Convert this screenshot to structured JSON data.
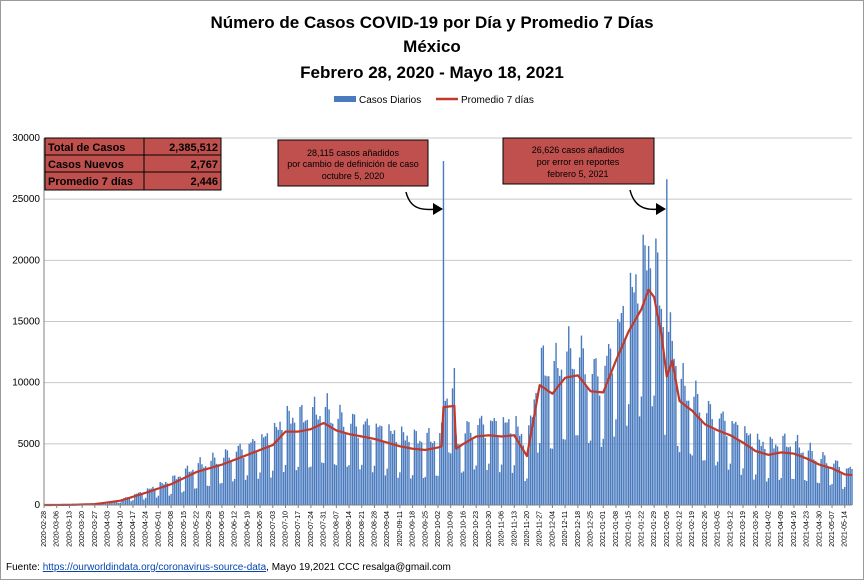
{
  "colors": {
    "bar": "#4a7bbf",
    "line": "#c0392b",
    "box_fill": "#c0504d",
    "grid": "#c8c8c8"
  },
  "chart_data": {
    "type": "bar",
    "title": "Número de  Casos  COVID-19 por Día y Promedio 7 Días",
    "subtitle_1": "México",
    "subtitle_2": "Febrero 28, 2020  - Mayo 18, 2021",
    "ylim": [
      0,
      30000
    ],
    "yticks": [
      "0",
      "5000",
      "10000",
      "15000",
      "20000",
      "25000",
      "30000"
    ],
    "grid": true,
    "legend": {
      "position": "top-center",
      "bars": "Casos Diarios",
      "line": "Promedio 7 días"
    },
    "series": [
      {
        "name": "Casos Diarios",
        "type": "bar"
      },
      {
        "name": "Promedio 7 días",
        "type": "line"
      }
    ],
    "start_date": "2020-02-28",
    "num_days": 446,
    "xtick_labels": [
      "2020-02-28",
      "2020-03-06",
      "2020-03-13",
      "2020-03-20",
      "2020-03-27",
      "2020-04-03",
      "2020-04-10",
      "2020-04-17",
      "2020-04-24",
      "2020-05-01",
      "2020-05-08",
      "2020-05-15",
      "2020-05-22",
      "2020-05-29",
      "2020-06-05",
      "2020-06-12",
      "2020-06-19",
      "2020-06-26",
      "2020-07-03",
      "2020-07-10",
      "2020-07-17",
      "2020-07-24",
      "2020-07-31",
      "2020-08-07",
      "2020-08-14",
      "2020-08-21",
      "2020-08-28",
      "2020-09-04",
      "2020-09-11",
      "2020-09-18",
      "2020-09-25",
      "2020-10-02",
      "2020-10-09",
      "2020-10-16",
      "2020-10-23",
      "2020-10-30",
      "2020-11-06",
      "2020-11-13",
      "2020-11-20",
      "2020-11-27",
      "2020-12-04",
      "2020-12-11",
      "2020-12-18",
      "2020-12-25",
      "2021-01-01",
      "2021-01-08",
      "2021-01-15",
      "2021-01-22",
      "2021-01-29",
      "2021-02-05",
      "2021-02-12",
      "2021-02-19",
      "2021-02-26",
      "2021-03-05",
      "2021-03-12",
      "2021-03-19",
      "2021-03-26",
      "2021-04-02",
      "2021-04-09",
      "2021-04-16",
      "2021-04-23",
      "2021-04-30",
      "2021-05-07",
      "2021-05-14"
    ],
    "avg_keypoints": [
      [
        "2020-02-28",
        0
      ],
      [
        "2020-03-13",
        10
      ],
      [
        "2020-03-27",
        70
      ],
      [
        "2020-04-10",
        350
      ],
      [
        "2020-04-24",
        1000
      ],
      [
        "2020-05-08",
        1700
      ],
      [
        "2020-05-22",
        2700
      ],
      [
        "2020-06-05",
        3300
      ],
      [
        "2020-06-19",
        4100
      ],
      [
        "2020-07-03",
        4900
      ],
      [
        "2020-07-10",
        6000
      ],
      [
        "2020-07-17",
        6000
      ],
      [
        "2020-07-24",
        6200
      ],
      [
        "2020-07-31",
        6700
      ],
      [
        "2020-08-07",
        6100
      ],
      [
        "2020-08-14",
        5800
      ],
      [
        "2020-08-21",
        5600
      ],
      [
        "2020-08-28",
        5400
      ],
      [
        "2020-09-04",
        5100
      ],
      [
        "2020-09-11",
        4800
      ],
      [
        "2020-09-18",
        4600
      ],
      [
        "2020-09-25",
        4500
      ],
      [
        "2020-10-02",
        4700
      ],
      [
        "2020-10-04",
        4800
      ],
      [
        "2020-10-05",
        8000
      ],
      [
        "2020-10-11",
        8100
      ],
      [
        "2020-10-12",
        4600
      ],
      [
        "2020-10-16",
        5000
      ],
      [
        "2020-10-23",
        5600
      ],
      [
        "2020-10-30",
        5700
      ],
      [
        "2020-11-06",
        5600
      ],
      [
        "2020-11-13",
        5700
      ],
      [
        "2020-11-20",
        4000
      ],
      [
        "2020-11-27",
        9800
      ],
      [
        "2020-12-04",
        9100
      ],
      [
        "2020-12-11",
        10400
      ],
      [
        "2020-12-18",
        10600
      ],
      [
        "2020-12-25",
        9300
      ],
      [
        "2021-01-01",
        9200
      ],
      [
        "2021-01-08",
        11800
      ],
      [
        "2021-01-15",
        14200
      ],
      [
        "2021-01-22",
        16000
      ],
      [
        "2021-01-26",
        17600
      ],
      [
        "2021-01-29",
        17000
      ],
      [
        "2021-02-02",
        14000
      ],
      [
        "2021-02-05",
        10500
      ],
      [
        "2021-02-08",
        11800
      ],
      [
        "2021-02-12",
        8500
      ],
      [
        "2021-02-19",
        7700
      ],
      [
        "2021-02-26",
        6600
      ],
      [
        "2021-03-05",
        6100
      ],
      [
        "2021-03-12",
        5700
      ],
      [
        "2021-03-19",
        5100
      ],
      [
        "2021-03-26",
        4400
      ],
      [
        "2021-04-02",
        4100
      ],
      [
        "2021-04-09",
        4300
      ],
      [
        "2021-04-16",
        4200
      ],
      [
        "2021-04-23",
        3800
      ],
      [
        "2021-04-30",
        3300
      ],
      [
        "2021-05-07",
        3000
      ],
      [
        "2021-05-14",
        2500
      ],
      [
        "2021-05-18",
        2446
      ]
    ],
    "spikes": [
      {
        "date": "2020-10-05",
        "value": 28115
      },
      {
        "date": "2021-02-05",
        "value": 26626
      }
    ],
    "stats_table": {
      "rows": [
        {
          "label": "Total de Casos",
          "value": "2,385,512"
        },
        {
          "label": "Casos Nuevos",
          "value": "2,767"
        },
        {
          "label": "Promedio 7 días",
          "value": "2,446"
        }
      ]
    },
    "annotations": [
      {
        "lines": [
          "28,115 casos  añadidos",
          "por cambio de definición  de caso",
          "octubre  5, 2020"
        ]
      },
      {
        "lines": [
          "26,626 casos  añadidos",
          "por error en reportes",
          "febrero  5, 2021"
        ]
      }
    ]
  },
  "footer": {
    "prefix": "Fuente:  ",
    "link": "https://ourworldindata.org/coronavirus-source-data",
    "suffix": ",  Mayo 19,2021    CCC   resalga@gmail.com"
  }
}
